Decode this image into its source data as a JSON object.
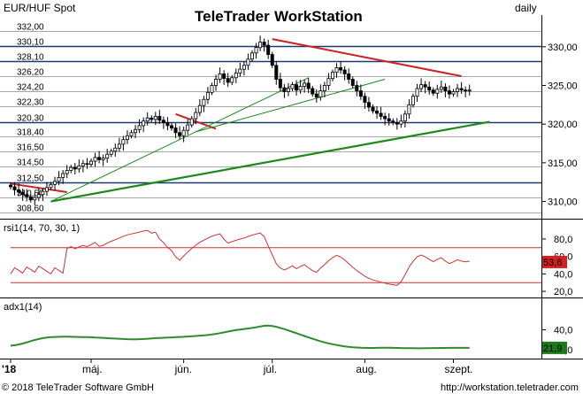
{
  "header": {
    "instrument": "EUR/HUF Spot",
    "watermark": "TeleTrader WorkStation",
    "watermark_brand": "TeleTrader",
    "watermark_product": "WorkStation",
    "period": "daily"
  },
  "footer": {
    "copyright": "© 2018 TeleTrader Software GmbH",
    "url": "http://workstation.teletrader.com"
  },
  "colors": {
    "candle": "#000000",
    "rsi_line": "#cc3333",
    "adx_line": "#2e8b2e",
    "trend_red": "#cc2222",
    "trend_green": "#1a8a1a",
    "hline_dark": "#1e3a6e",
    "hline_light": "#8a8a8a",
    "rsi_badge": "#d42020",
    "adx_badge": "#1a7a1a"
  },
  "chart_data": [
    {
      "type": "candlestick",
      "panel": "price",
      "title": "EUR/HUF Spot",
      "ylim": [
        308.0,
        332.5
      ],
      "right_axis_ticks": [
        310.0,
        315.0,
        320.0,
        325.0,
        330.0
      ],
      "right_axis_labels": [
        "310,00",
        "315,00",
        "320,00",
        "325,00",
        "330,00"
      ],
      "fib_levels": [
        332.0,
        330.1,
        328.1,
        326.2,
        324.2,
        322.3,
        320.3,
        318.4,
        316.5,
        314.5,
        312.5,
        310.5,
        308.6
      ],
      "fib_labels": [
        "332,00",
        "330,10",
        "328,10",
        "326,20",
        "324,20",
        "322,30",
        "320,30",
        "318,40",
        "316,50",
        "314,50",
        "312,50",
        "310,50",
        "308,60"
      ],
      "fib_bold": [
        330.1,
        328.1,
        320.3,
        312.5
      ],
      "x_labels": [
        "'18",
        "máj.",
        "jún.",
        "júl.",
        "aug.",
        "szept."
      ],
      "x_label_index": [
        0,
        20,
        43,
        65,
        88,
        110
      ],
      "x_count": 115,
      "close": [
        311.9,
        311.5,
        311.2,
        310.9,
        310.6,
        310.2,
        310.5,
        310.9,
        311.3,
        311.8,
        312.2,
        312.6,
        313.1,
        313.6,
        314.0,
        314.4,
        314.2,
        314.6,
        314.9,
        314.8,
        315.2,
        315.7,
        315.4,
        315.6,
        316.1,
        316.5,
        316.9,
        317.4,
        318.0,
        318.5,
        318.9,
        319.3,
        319.8,
        320.4,
        320.8,
        320.6,
        321.0,
        320.5,
        320.2,
        319.8,
        319.5,
        318.9,
        318.5,
        319.2,
        319.9,
        320.7,
        321.5,
        322.4,
        323.2,
        324.1,
        325.0,
        325.8,
        326.5,
        325.9,
        325.4,
        326.0,
        326.6,
        327.1,
        327.6,
        328.4,
        329.2,
        329.9,
        330.6,
        330.2,
        329.0,
        327.6,
        325.8,
        324.7,
        324.2,
        324.6,
        325.1,
        324.4,
        324.9,
        325.3,
        324.6,
        323.9,
        323.5,
        324.3,
        325.0,
        325.9,
        326.7,
        327.3,
        327.0,
        326.5,
        325.8,
        325.0,
        324.3,
        323.6,
        322.8,
        322.2,
        321.7,
        321.4,
        321.0,
        320.7,
        320.4,
        320.2,
        320.0,
        320.4,
        321.3,
        322.5,
        323.6,
        324.6,
        325.1,
        324.8,
        324.4,
        324.0,
        324.5,
        324.8,
        324.3,
        323.9,
        324.2,
        324.6,
        324.4,
        324.3,
        324.4
      ]
    },
    {
      "type": "line",
      "panel": "rsi",
      "title": "rsi1(14, 70, 30, 1)",
      "ylim": [
        15,
        88
      ],
      "ticks": [
        20,
        40,
        60,
        80
      ],
      "tick_labels": [
        "20,0",
        "40,0",
        "60,0",
        "80,0"
      ],
      "bands": [
        70,
        30
      ],
      "last_label": "53,6",
      "last_value": 53.6
    },
    {
      "type": "line",
      "panel": "adx",
      "title": "adx1(14)",
      "ylim": [
        12,
        60
      ],
      "ticks": [
        20,
        40
      ],
      "tick_labels": [
        "20,0",
        "40,0"
      ],
      "last_label": "21,9",
      "last_value": 21.9,
      "values": [
        24.0,
        24.5,
        25.2,
        26.2,
        27.4,
        28.6,
        29.8,
        30.8,
        31.6,
        32.2,
        32.6,
        32.8,
        33.0,
        33.1,
        33.1,
        33.0,
        32.9,
        32.8,
        32.7,
        32.6,
        32.5,
        32.3,
        32.1,
        31.9,
        31.6,
        31.4,
        31.2,
        31.0,
        30.8,
        30.6,
        30.5,
        30.5,
        30.6,
        30.8,
        31.0,
        31.3,
        31.6,
        31.8,
        32.0,
        32.2,
        32.4,
        32.6,
        32.8,
        33.0,
        33.2,
        33.5,
        33.8,
        34.1,
        34.4,
        34.8,
        35.3,
        35.9,
        36.6,
        37.4,
        38.2,
        39.0,
        39.7,
        40.3,
        40.8,
        41.3,
        41.9,
        42.6,
        43.4,
        44.0,
        44.2,
        43.8,
        43.0,
        41.9,
        40.7,
        39.4,
        38.0,
        36.6,
        35.2,
        33.8,
        32.4,
        31.0,
        29.7,
        28.5,
        27.4,
        26.4,
        25.5,
        24.7,
        24.0,
        23.4,
        22.9,
        22.5,
        22.2,
        22.0,
        21.9,
        21.8,
        21.8,
        21.9,
        22.0,
        22.0,
        22.0,
        21.9,
        21.8,
        21.7,
        21.6,
        21.5,
        21.5,
        21.4,
        21.4,
        21.5,
        21.6,
        21.7,
        21.7,
        21.8,
        21.8,
        21.9,
        21.9,
        21.9,
        21.9,
        21.9,
        21.9
      ]
    }
  ]
}
